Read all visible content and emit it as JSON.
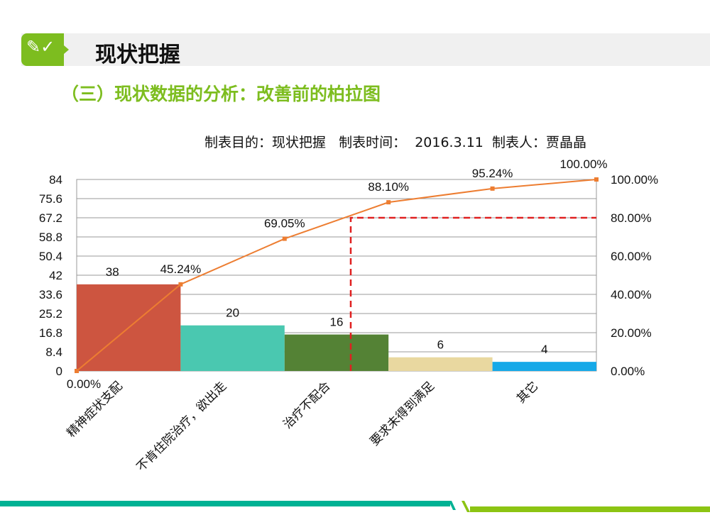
{
  "header": {
    "title": "现状把握",
    "icon": "pencil-check-icon"
  },
  "subtitle": "（三）现状数据的分析：改善前的柏拉图",
  "meta": "制表目的：现状把握   制表时间：  2016.3.11  制表人：贾晶晶",
  "colors": {
    "accent": "#7dbd1f",
    "footer_teal": "#00b294",
    "footer_green": "#8cc413",
    "line": "#ed7d31",
    "threshold": "#e02020"
  },
  "chart_data": {
    "type": "bar",
    "categories": [
      "精神症状支配",
      "不肯住院治疗，欲出走",
      "治疗不配合",
      "要求未得到满足",
      "其它"
    ],
    "values": [
      38,
      20,
      16,
      6,
      4
    ],
    "bar_colors": [
      "#cd5540",
      "#4ac8b0",
      "#548235",
      "#e9d8a0",
      "#16a9e8"
    ],
    "cumulative": {
      "x_labels": [
        "0.00%",
        "45.24%",
        "69.05%",
        "88.10%",
        "95.24%",
        "100.00%"
      ],
      "values": [
        0,
        45.24,
        69.05,
        88.1,
        95.24,
        100
      ]
    },
    "threshold_percent": 80,
    "y_left": {
      "ticks": [
        "0",
        "8.4",
        "16.8",
        "25.2",
        "33.6",
        "42",
        "50.4",
        "58.8",
        "67.2",
        "75.6",
        "84"
      ],
      "lim": [
        0,
        84
      ]
    },
    "y_right": {
      "ticks": [
        "0.00%",
        "20.00%",
        "40.00%",
        "60.00%",
        "80.00%",
        "100.00%"
      ],
      "lim": [
        0,
        100
      ]
    },
    "grid": true
  }
}
